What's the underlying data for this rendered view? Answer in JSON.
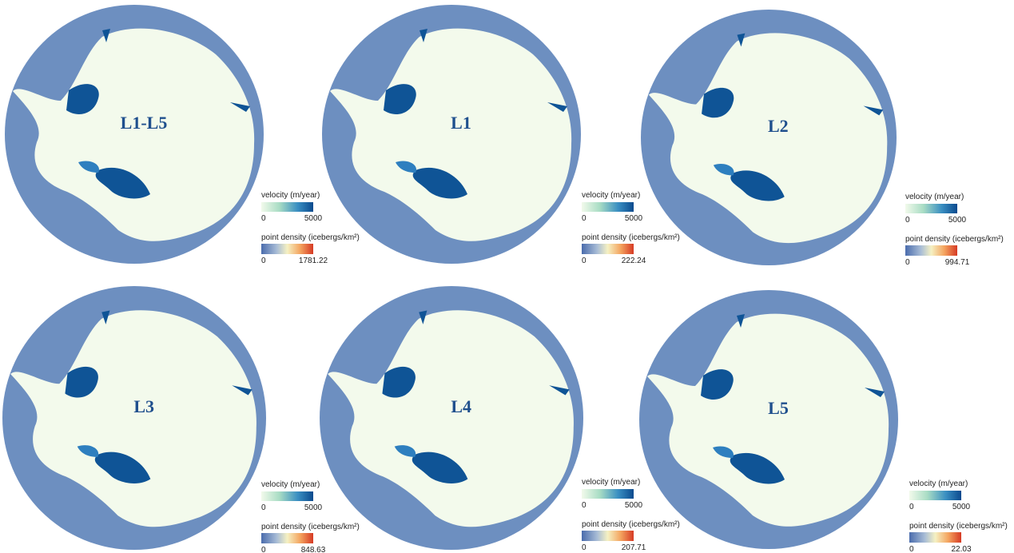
{
  "panels": [
    {
      "label": "L1-L5",
      "velocity_legend": {
        "title": "velocity (m/year)",
        "min": 0,
        "max": 5000
      },
      "density_legend": {
        "title": "point density (icebergs/km²)",
        "min": 0,
        "max": 1781.22
      }
    },
    {
      "label": "L1",
      "velocity_legend": {
        "title": "velocity (m/year)",
        "min": 0,
        "max": 5000
      },
      "density_legend": {
        "title": "point density (icebergs/km²)",
        "min": 0,
        "max": 222.24
      }
    },
    {
      "label": "L2",
      "velocity_legend": {
        "title": "velocity (m/year)",
        "min": 0,
        "max": 5000
      },
      "density_legend": {
        "title": "point density (icebergs/km²)",
        "min": 0,
        "max": 994.71
      }
    },
    {
      "label": "L3",
      "velocity_legend": {
        "title": "velocity (m/year)",
        "min": 0,
        "max": 5000
      },
      "density_legend": {
        "title": "point density (icebergs/km²)",
        "min": 0,
        "max": 848.63
      }
    },
    {
      "label": "L4",
      "velocity_legend": {
        "title": "velocity (m/year)",
        "min": 0,
        "max": 5000
      },
      "density_legend": {
        "title": "point density (icebergs/km²)",
        "min": 0,
        "max": 207.71
      }
    },
    {
      "label": "L5",
      "velocity_legend": {
        "title": "velocity (m/year)",
        "min": 0,
        "max": 5000
      },
      "density_legend": {
        "title": "point density (icebergs/km²)",
        "min": 0,
        "max": 22.03
      }
    }
  ]
}
